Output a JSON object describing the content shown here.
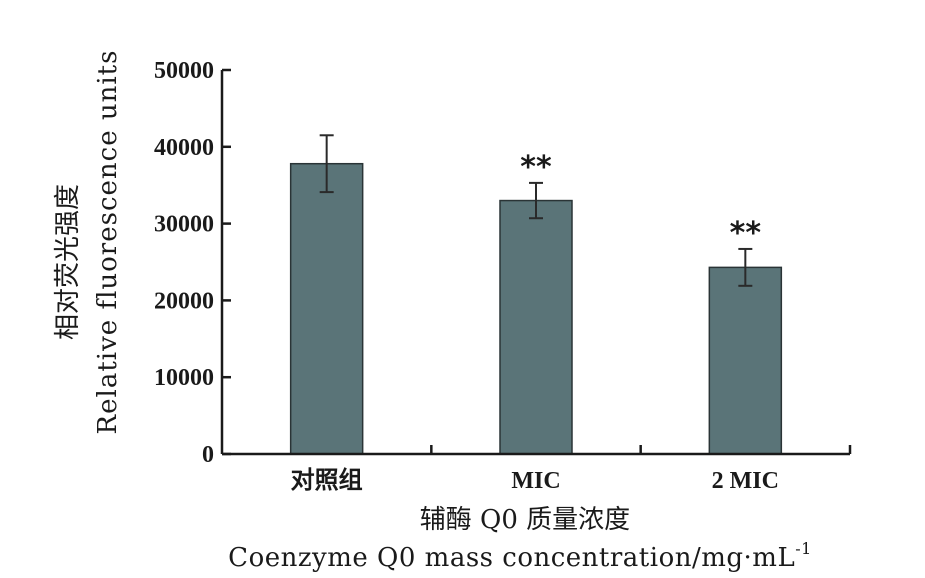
{
  "chart_data": {
    "type": "bar",
    "categories": [
      "对照组",
      "MIC",
      "2 MIC"
    ],
    "values": [
      37800,
      33000,
      24300
    ],
    "errors": [
      3700,
      2300,
      2400
    ],
    "annotations": [
      "",
      "**",
      "**"
    ],
    "ylim": [
      0,
      50000
    ],
    "yticks": [
      0,
      10000,
      20000,
      30000,
      40000,
      50000
    ],
    "ytick_labels": [
      "0",
      "10000",
      "20000",
      "30000",
      "40000",
      "50000"
    ],
    "ylabel_cn": "相对荧光强度",
    "ylabel_en": "Relative fluorescence units",
    "xlabel_cn": "辅酶 Q0 质量浓度",
    "xlabel_en": "Coenzyme Q0 mass concentration/mg·mL",
    "xlabel_en_sup": "-1",
    "bar_color": "#5a7478",
    "axis_color": "#1a1a1a",
    "grid": false,
    "legend": "none"
  }
}
